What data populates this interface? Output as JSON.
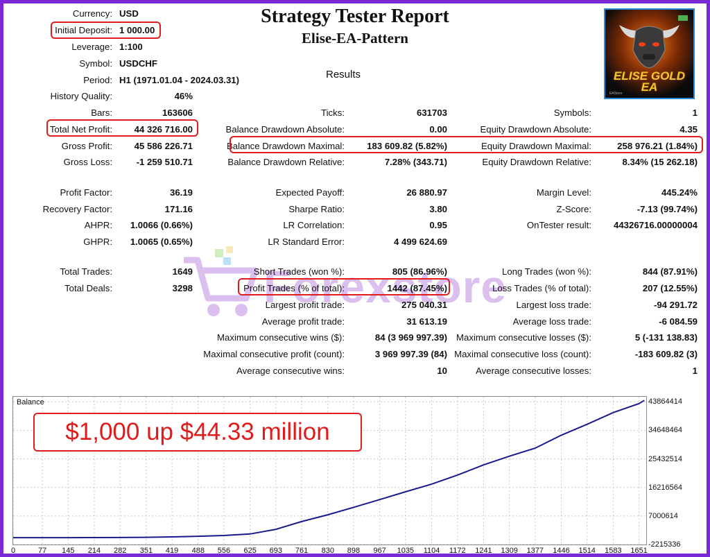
{
  "header": {
    "title": "Strategy Tester Report",
    "subtitle": "Elise-EA-Pattern",
    "results_heading": "Results"
  },
  "logo": {
    "text_line1": "ELISE GOLD",
    "text_line2": "EA",
    "small_text": "EAStore"
  },
  "watermark": {
    "text": "Forexstore",
    "color": "#9b49d4"
  },
  "settings": {
    "currency_label": "Currency:",
    "currency": "USD",
    "deposit_label": "Initial Deposit:",
    "deposit": "1 000.00",
    "leverage_label": "Leverage:",
    "leverage": "1:100",
    "symbol_label": "Symbol:",
    "symbol": "USDCHF",
    "period_label": "Period:",
    "period": "H1 (1971.01.04 - 2024.03.31)",
    "history_label": "History Quality:",
    "history": "46%"
  },
  "col1": {
    "bars_label": "Bars:",
    "bars": "163606",
    "net_label": "Total Net Profit:",
    "net": "44 326 716.00",
    "gross_profit_label": "Gross Profit:",
    "gross_profit": "45 586 226.71",
    "gross_loss_label": "Gross Loss:",
    "gross_loss": "-1 259 510.71",
    "pf_label": "Profit Factor:",
    "pf": "36.19",
    "rf_label": "Recovery Factor:",
    "rf": "171.16",
    "ahpr_label": "AHPR:",
    "ahpr": "1.0066 (0.66%)",
    "ghpr_label": "GHPR:",
    "ghpr": "1.0065 (0.65%)",
    "trades_label": "Total Trades:",
    "trades": "1649",
    "deals_label": "Total Deals:",
    "deals": "3298"
  },
  "col2": {
    "ticks_label": "Ticks:",
    "ticks": "631703",
    "bda_label": "Balance Drawdown Absolute:",
    "bda": "0.00",
    "bdm_label": "Balance Drawdown Maximal:",
    "bdm": "183 609.82 (5.82%)",
    "bdr_label": "Balance Drawdown Relative:",
    "bdr": "7.28% (343.71)",
    "ep_label": "Expected Payoff:",
    "ep": "26 880.97",
    "sr_label": "Sharpe Ratio:",
    "sr": "3.80",
    "lrc_label": "LR Correlation:",
    "lrc": "0.95",
    "lrse_label": "LR Standard Error:",
    "lrse": "4 499 624.69",
    "st_label": "Short Trades (won %):",
    "st": "805 (86.96%)",
    "pt_label": "Profit Trades (% of total):",
    "pt": "1442 (87.45%)",
    "lpt_label": "Largest profit trade:",
    "lpt": "275 040.31",
    "apt_label": "Average profit trade:",
    "apt": "31 613.19",
    "mcw_label": "Maximum consecutive wins ($):",
    "mcw": "84 (3 969 997.39)",
    "mcp_label": "Maximal consecutive profit (count):",
    "mcp": "3 969 997.39 (84)",
    "acw_label": "Average consecutive wins:",
    "acw": "10"
  },
  "col3": {
    "symbols_label": "Symbols:",
    "symbols": "1",
    "eda_label": "Equity Drawdown Absolute:",
    "eda": "4.35",
    "edm_label": "Equity Drawdown Maximal:",
    "edm": "258 976.21 (1.84%)",
    "edr_label": "Equity Drawdown Relative:",
    "edr": "8.34% (15 262.18)",
    "ml_label": "Margin Level:",
    "ml": "445.24%",
    "zs_label": "Z-Score:",
    "zs": "-7.13 (99.74%)",
    "ot_label": "OnTester result:",
    "ot": "44326716.00000004",
    "lt_label": "Long Trades (won %):",
    "lt": "844 (87.91%)",
    "lst_label": "Loss Trades (% of total):",
    "lst": "207 (12.55%)",
    "llt_label": "Largest loss trade:",
    "llt": "-94 291.72",
    "alt_label": "Average loss trade:",
    "alt": "-6 084.59",
    "mcl_label": "Maximum consecutive losses ($):",
    "mcl": "5 (-131 138.83)",
    "mcll_label": "Maximal consecutive loss (count):",
    "mcll": "-183 609.82 (3)",
    "acl_label": "Average consecutive losses:",
    "acl": "1"
  },
  "overlay": {
    "text": "$1,000 up $44.33 million"
  },
  "colors": {
    "frame": "#7b28d6",
    "highlight": "#e01b1b",
    "line": "#1a1a8c"
  },
  "chart_data": {
    "type": "line",
    "title": "Balance",
    "xlabel": "",
    "ylabel": "",
    "x_ticks": [
      0,
      77,
      145,
      214,
      282,
      351,
      419,
      488,
      556,
      625,
      693,
      761,
      830,
      898,
      967,
      1035,
      1104,
      1172,
      1241,
      1309,
      1377,
      1446,
      1514,
      1583,
      1651
    ],
    "y_ticks": [
      43864414,
      34648464,
      25432514,
      16216564,
      7000614,
      -2215336
    ],
    "xlim": [
      0,
      1670
    ],
    "ylim": [
      -2215336,
      45500000
    ],
    "grid": true,
    "series": [
      {
        "x": [
          0,
          77,
          145,
          214,
          282,
          351,
          419,
          488,
          556,
          625,
          693,
          761,
          830,
          898,
          967,
          1035,
          1104,
          1172,
          1241,
          1309,
          1377,
          1446,
          1514,
          1583,
          1651,
          1665
        ],
        "values": [
          1000,
          2000,
          8000,
          25000,
          55000,
          110000,
          250000,
          450000,
          700000,
          1200000,
          2700000,
          5200000,
          7400000,
          9800000,
          12300000,
          14800000,
          17300000,
          20200000,
          23500000,
          26300000,
          28900000,
          33100000,
          36600000,
          40400000,
          43300000,
          44327716
        ]
      }
    ]
  }
}
